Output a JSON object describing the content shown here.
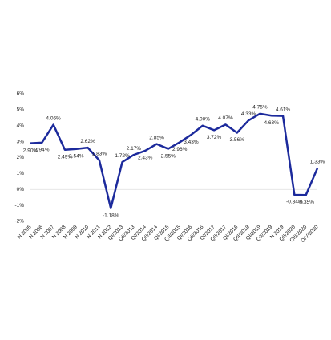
{
  "chart_data": {
    "type": "line",
    "categories": [
      "N 2005",
      "N 2006",
      "N 2007",
      "N 2008",
      "N 2009",
      "N 2010",
      "N 2011",
      "N 2012",
      "QI/2013",
      "QII/2013",
      "QI/2014",
      "QII/2014",
      "QI/2015",
      "QII/2015",
      "QI/2016",
      "QII/2016",
      "QI/2017",
      "QII/2017",
      "QI/2018",
      "QII/2018",
      "QI/2019",
      "QII/2019",
      "N 2019",
      "QII/2020",
      "QIII/2020",
      "QIV/2020"
    ],
    "series": [
      {
        "color": "#1c2a9c",
        "values": [
          2.9,
          2.94,
          4.06,
          2.49,
          2.54,
          2.62,
          1.83,
          -1.18,
          1.72,
          2.17,
          2.43,
          2.85,
          2.55,
          2.96,
          3.43,
          4.0,
          3.72,
          4.07,
          3.56,
          4.33,
          4.75,
          4.63,
          4.61,
          -0.34,
          -0.35,
          1.33
        ],
        "value_labels": [
          "2.90%",
          "2.94%",
          "4.06%",
          "2.49%",
          "2.54%",
          "2.62%",
          "1.83%",
          "-1.18%",
          "1.72%",
          "2.17%",
          "2.43%",
          "2.85%",
          "2.55%",
          "2.96%",
          "3.43%",
          "4.00%",
          "3.72%",
          "4.07%",
          "3.56%",
          "4.33%",
          "4.75%",
          "4.63%",
          "4.61%",
          "-0.34%",
          "-0.35%",
          "1.33%"
        ]
      }
    ],
    "ylim": [
      -2,
      6
    ],
    "yticks": [
      {
        "value": -2,
        "label": "-2%"
      },
      {
        "value": -1,
        "label": "-1%"
      },
      {
        "value": 0,
        "label": "0%"
      },
      {
        "value": 1,
        "label": "1%"
      },
      {
        "value": 2,
        "label": "2%"
      },
      {
        "value": 3,
        "label": "3%"
      },
      {
        "value": 4,
        "label": "4%"
      },
      {
        "value": 5,
        "label": "5%"
      },
      {
        "value": 6,
        "label": "6%"
      }
    ]
  }
}
